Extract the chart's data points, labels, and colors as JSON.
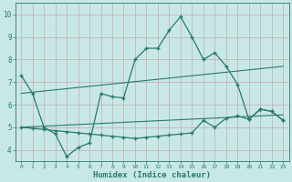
{
  "xlabel": "Humidex (Indice chaleur)",
  "bg_color": "#c8e8e8",
  "grid_color": "#aacccc",
  "line_color": "#2a7a6a",
  "xlim": [
    -0.5,
    23.5
  ],
  "ylim": [
    3.5,
    10.5
  ],
  "xticks": [
    0,
    1,
    2,
    3,
    4,
    5,
    6,
    7,
    8,
    9,
    10,
    11,
    12,
    13,
    14,
    15,
    16,
    17,
    18,
    19,
    20,
    21,
    22,
    23
  ],
  "yticks": [
    4,
    5,
    6,
    7,
    8,
    9,
    10
  ],
  "line1": {
    "x": [
      0,
      1,
      2,
      3,
      4,
      5,
      6,
      7,
      8,
      9,
      10,
      11,
      12,
      13,
      14,
      15,
      16,
      17,
      18,
      19,
      20,
      21,
      22,
      23
    ],
    "y": [
      7.3,
      6.5,
      5.0,
      4.7,
      3.7,
      4.1,
      4.3,
      6.5,
      6.35,
      6.3,
      8.0,
      8.5,
      8.5,
      9.3,
      9.9,
      9.0,
      8.0,
      8.3,
      7.7,
      6.9,
      5.35,
      5.8,
      5.7,
      5.3
    ]
  },
  "line2": {
    "x": [
      0,
      1,
      2,
      3,
      4,
      5,
      6,
      7,
      8,
      9,
      10,
      11,
      12,
      13,
      14,
      15,
      16,
      17,
      18,
      19,
      20,
      21,
      22,
      23
    ],
    "y": [
      5.0,
      4.95,
      4.9,
      4.85,
      4.8,
      4.75,
      4.7,
      4.65,
      4.6,
      4.55,
      4.5,
      4.55,
      4.6,
      4.65,
      4.7,
      4.75,
      5.3,
      5.0,
      5.4,
      5.5,
      5.35,
      5.8,
      5.7,
      5.3
    ]
  },
  "diag1": {
    "x": [
      0,
      23
    ],
    "y": [
      6.5,
      7.7
    ]
  },
  "diag2": {
    "x": [
      0,
      23
    ],
    "y": [
      5.0,
      5.55
    ]
  }
}
